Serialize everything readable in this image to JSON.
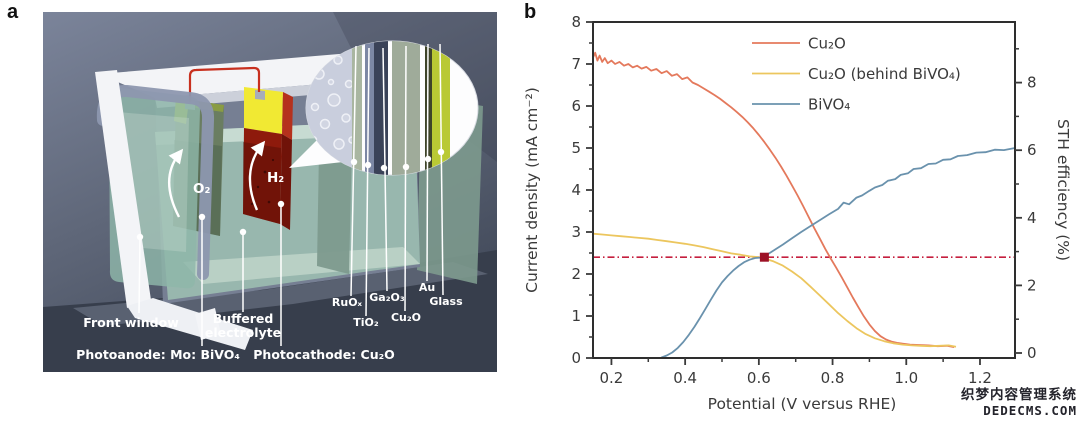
{
  "figure": {
    "panel_a_label": "a",
    "panel_b_label": "b"
  },
  "watermark": {
    "line1": "织梦内容管理系统",
    "line2": "DEDECMS.COM"
  },
  "panel_a": {
    "labels": {
      "front_window": "Front window",
      "buffered_1": "Buffered",
      "buffered_2": "electrolyte",
      "photoanode": "Photoanode: Mo: BiVO₄",
      "photocathode": "Photocathode: Cu₂O",
      "o2": "O₂",
      "h2": "H₂",
      "layers": {
        "ruox": "RuOₓ",
        "tio2": "TiO₂",
        "ga2o3": "Ga₂O₃",
        "cu2o": "Cu₂O",
        "au": "Au",
        "glass": "Glass"
      }
    },
    "colors": {
      "bg_top": "#7b849a",
      "bg_mid": "#5f6779",
      "bg_bottom": "#424a5a",
      "base_dark": "#373e4c",
      "floor_light": "#7b8496",
      "frame_white": "#f3f4f7",
      "rim_shadow": "#ccd0da",
      "window_frame": "#8d97af",
      "glass_teal": "#8fb7a9",
      "glass_sheen": "#cfe2d8",
      "liquid": "#9dbfb2",
      "liquid_floor": "#c2d6cb",
      "back_glass": "#7d9a8e",
      "anode_green": "#6a7d61",
      "anode_edge": "#c6d145",
      "cathode_red": "#8e1a0c",
      "cathode_edge": "#701309",
      "cathode_top": "#f1e933",
      "wire_red": "#c8301f",
      "connector_gray": "#a7adb9",
      "bubble_fill": "#fdfdfe",
      "electrolyte_zone": "#c9cedd",
      "stripe_ruox": "#a9b6a1",
      "stripe_tio2": "#7c87a4",
      "stripe_ga2o3": "#3a4258",
      "stripe_cu2o": "#9fab9a",
      "stripe_au": "#3e4429",
      "stripe_glass": "#b9c934"
    }
  },
  "chart_data": {
    "type": "line",
    "xlabel": "Potential (V versus RHE)",
    "ylabel_left": "Current density (mA cm⁻²)",
    "ylabel_right": "STH efficiency (%)",
    "xlim": [
      0.15,
      1.295
    ],
    "ylim_left": [
      0,
      8
    ],
    "ylim_right": [
      0,
      9.85
    ],
    "grid": false,
    "legend_position": "top-right-inside",
    "x_ticks": [
      0.2,
      0.4,
      0.6,
      0.8,
      1.0,
      1.2
    ],
    "x_tick_labels": [
      "0.2",
      "0.4",
      "0.6",
      "0.8",
      "1.0",
      "1.2"
    ],
    "x_minor_ticks": [
      0.3,
      0.5,
      0.7,
      0.9,
      1.1
    ],
    "y_ticks_left": [
      0,
      1,
      2,
      3,
      4,
      5,
      6,
      7,
      8
    ],
    "y_tick_labels_left": [
      "0",
      "1",
      "2",
      "3",
      "4",
      "5",
      "6",
      "7",
      "8"
    ],
    "y_minor_left": [
      0.5,
      1.5,
      2.5,
      3.5,
      4.5,
      5.5,
      6.5,
      7.5
    ],
    "y_ticks_right": [
      0,
      2,
      4,
      6,
      8
    ],
    "y_tick_labels_right": [
      "0",
      "2",
      "4",
      "6",
      "8"
    ],
    "y_minor_right": [
      1,
      3,
      5,
      7,
      9
    ],
    "axis_color": "#3a3a3a",
    "series": [
      {
        "name": "Cu₂O",
        "color": "#e4795c",
        "points": [
          [
            0.15,
            7.15
          ],
          [
            0.156,
            7.27
          ],
          [
            0.162,
            7.08
          ],
          [
            0.168,
            7.2
          ],
          [
            0.175,
            7.05
          ],
          [
            0.182,
            7.14
          ],
          [
            0.19,
            7.02
          ],
          [
            0.2,
            7.08
          ],
          [
            0.21,
            7.0
          ],
          [
            0.222,
            7.05
          ],
          [
            0.234,
            6.96
          ],
          [
            0.246,
            7.0
          ],
          [
            0.258,
            6.92
          ],
          [
            0.27,
            6.96
          ],
          [
            0.282,
            6.89
          ],
          [
            0.295,
            6.93
          ],
          [
            0.308,
            6.84
          ],
          [
            0.322,
            6.88
          ],
          [
            0.336,
            6.78
          ],
          [
            0.35,
            6.83
          ],
          [
            0.364,
            6.72
          ],
          [
            0.378,
            6.76
          ],
          [
            0.392,
            6.64
          ],
          [
            0.406,
            6.68
          ],
          [
            0.42,
            6.56
          ],
          [
            0.435,
            6.5
          ],
          [
            0.45,
            6.42
          ],
          [
            0.465,
            6.34
          ],
          [
            0.48,
            6.26
          ],
          [
            0.495,
            6.17
          ],
          [
            0.51,
            6.07
          ],
          [
            0.525,
            5.97
          ],
          [
            0.54,
            5.86
          ],
          [
            0.555,
            5.74
          ],
          [
            0.57,
            5.61
          ],
          [
            0.585,
            5.47
          ],
          [
            0.6,
            5.31
          ],
          [
            0.615,
            5.14
          ],
          [
            0.63,
            4.96
          ],
          [
            0.645,
            4.77
          ],
          [
            0.66,
            4.56
          ],
          [
            0.675,
            4.34
          ],
          [
            0.69,
            4.11
          ],
          [
            0.705,
            3.87
          ],
          [
            0.72,
            3.62
          ],
          [
            0.735,
            3.36
          ],
          [
            0.75,
            3.1
          ],
          [
            0.765,
            2.85
          ],
          [
            0.78,
            2.6
          ],
          [
            0.795,
            2.37
          ],
          [
            0.81,
            2.15
          ],
          [
            0.825,
            1.92
          ],
          [
            0.84,
            1.68
          ],
          [
            0.855,
            1.44
          ],
          [
            0.87,
            1.21
          ],
          [
            0.885,
            0.99
          ],
          [
            0.9,
            0.8
          ],
          [
            0.915,
            0.64
          ],
          [
            0.93,
            0.52
          ],
          [
            0.945,
            0.44
          ],
          [
            0.96,
            0.39
          ],
          [
            0.975,
            0.36
          ],
          [
            0.99,
            0.34
          ],
          [
            1.01,
            0.32
          ],
          [
            1.035,
            0.31
          ],
          [
            1.06,
            0.3
          ],
          [
            1.085,
            0.28
          ],
          [
            1.11,
            0.29
          ],
          [
            1.13,
            0.26
          ]
        ]
      },
      {
        "name": "Cu₂O (behind BiVO₄)",
        "color": "#ecc65e",
        "points": [
          [
            0.15,
            2.96
          ],
          [
            0.175,
            2.94
          ],
          [
            0.2,
            2.92
          ],
          [
            0.225,
            2.9
          ],
          [
            0.25,
            2.88
          ],
          [
            0.275,
            2.86
          ],
          [
            0.3,
            2.84
          ],
          [
            0.325,
            2.81
          ],
          [
            0.35,
            2.78
          ],
          [
            0.375,
            2.75
          ],
          [
            0.4,
            2.72
          ],
          [
            0.425,
            2.68
          ],
          [
            0.45,
            2.64
          ],
          [
            0.475,
            2.59
          ],
          [
            0.5,
            2.54
          ],
          [
            0.525,
            2.49
          ],
          [
            0.55,
            2.46
          ],
          [
            0.575,
            2.42
          ],
          [
            0.6,
            2.4
          ],
          [
            0.615,
            2.37
          ],
          [
            0.64,
            2.3
          ],
          [
            0.665,
            2.2
          ],
          [
            0.69,
            2.06
          ],
          [
            0.715,
            1.9
          ],
          [
            0.74,
            1.7
          ],
          [
            0.765,
            1.49
          ],
          [
            0.79,
            1.28
          ],
          [
            0.815,
            1.07
          ],
          [
            0.84,
            0.88
          ],
          [
            0.865,
            0.71
          ],
          [
            0.89,
            0.57
          ],
          [
            0.915,
            0.47
          ],
          [
            0.94,
            0.4
          ],
          [
            0.965,
            0.35
          ],
          [
            0.99,
            0.32
          ],
          [
            1.015,
            0.3
          ],
          [
            1.04,
            0.29
          ],
          [
            1.065,
            0.28
          ],
          [
            1.09,
            0.29
          ],
          [
            1.115,
            0.3
          ],
          [
            1.135,
            0.27
          ]
        ]
      },
      {
        "name": "BiVO₄",
        "color": "#6a92ad",
        "points": [
          [
            0.335,
            0.01
          ],
          [
            0.35,
            0.06
          ],
          [
            0.365,
            0.13
          ],
          [
            0.38,
            0.24
          ],
          [
            0.395,
            0.38
          ],
          [
            0.41,
            0.55
          ],
          [
            0.425,
            0.74
          ],
          [
            0.44,
            0.95
          ],
          [
            0.455,
            1.17
          ],
          [
            0.47,
            1.39
          ],
          [
            0.485,
            1.61
          ],
          [
            0.5,
            1.8
          ],
          [
            0.515,
            1.95
          ],
          [
            0.53,
            2.08
          ],
          [
            0.545,
            2.19
          ],
          [
            0.56,
            2.28
          ],
          [
            0.575,
            2.34
          ],
          [
            0.59,
            2.38
          ],
          [
            0.605,
            2.39
          ],
          [
            0.615,
            2.42
          ],
          [
            0.64,
            2.56
          ],
          [
            0.665,
            2.7
          ],
          [
            0.69,
            2.85
          ],
          [
            0.715,
            3.0
          ],
          [
            0.74,
            3.14
          ],
          [
            0.765,
            3.28
          ],
          [
            0.79,
            3.42
          ],
          [
            0.815,
            3.55
          ],
          [
            0.83,
            3.7
          ],
          [
            0.845,
            3.66
          ],
          [
            0.865,
            3.82
          ],
          [
            0.88,
            3.87
          ],
          [
            0.9,
            3.98
          ],
          [
            0.915,
            4.06
          ],
          [
            0.935,
            4.12
          ],
          [
            0.95,
            4.22
          ],
          [
            0.97,
            4.26
          ],
          [
            0.985,
            4.36
          ],
          [
            1.005,
            4.4
          ],
          [
            1.02,
            4.5
          ],
          [
            1.04,
            4.52
          ],
          [
            1.06,
            4.62
          ],
          [
            1.08,
            4.63
          ],
          [
            1.1,
            4.72
          ],
          [
            1.12,
            4.73
          ],
          [
            1.14,
            4.81
          ],
          [
            1.165,
            4.83
          ],
          [
            1.19,
            4.89
          ],
          [
            1.215,
            4.9
          ],
          [
            1.24,
            4.96
          ],
          [
            1.265,
            4.95
          ],
          [
            1.295,
            5.0
          ]
        ]
      }
    ],
    "reference_line": {
      "y_left": 2.4,
      "y_right_equivalent": 3.0,
      "color": "#c51f3e",
      "style": "dash-dot"
    },
    "marker": {
      "x": 0.615,
      "y_left": 2.4,
      "shape": "square",
      "color": "#9c1126"
    }
  }
}
